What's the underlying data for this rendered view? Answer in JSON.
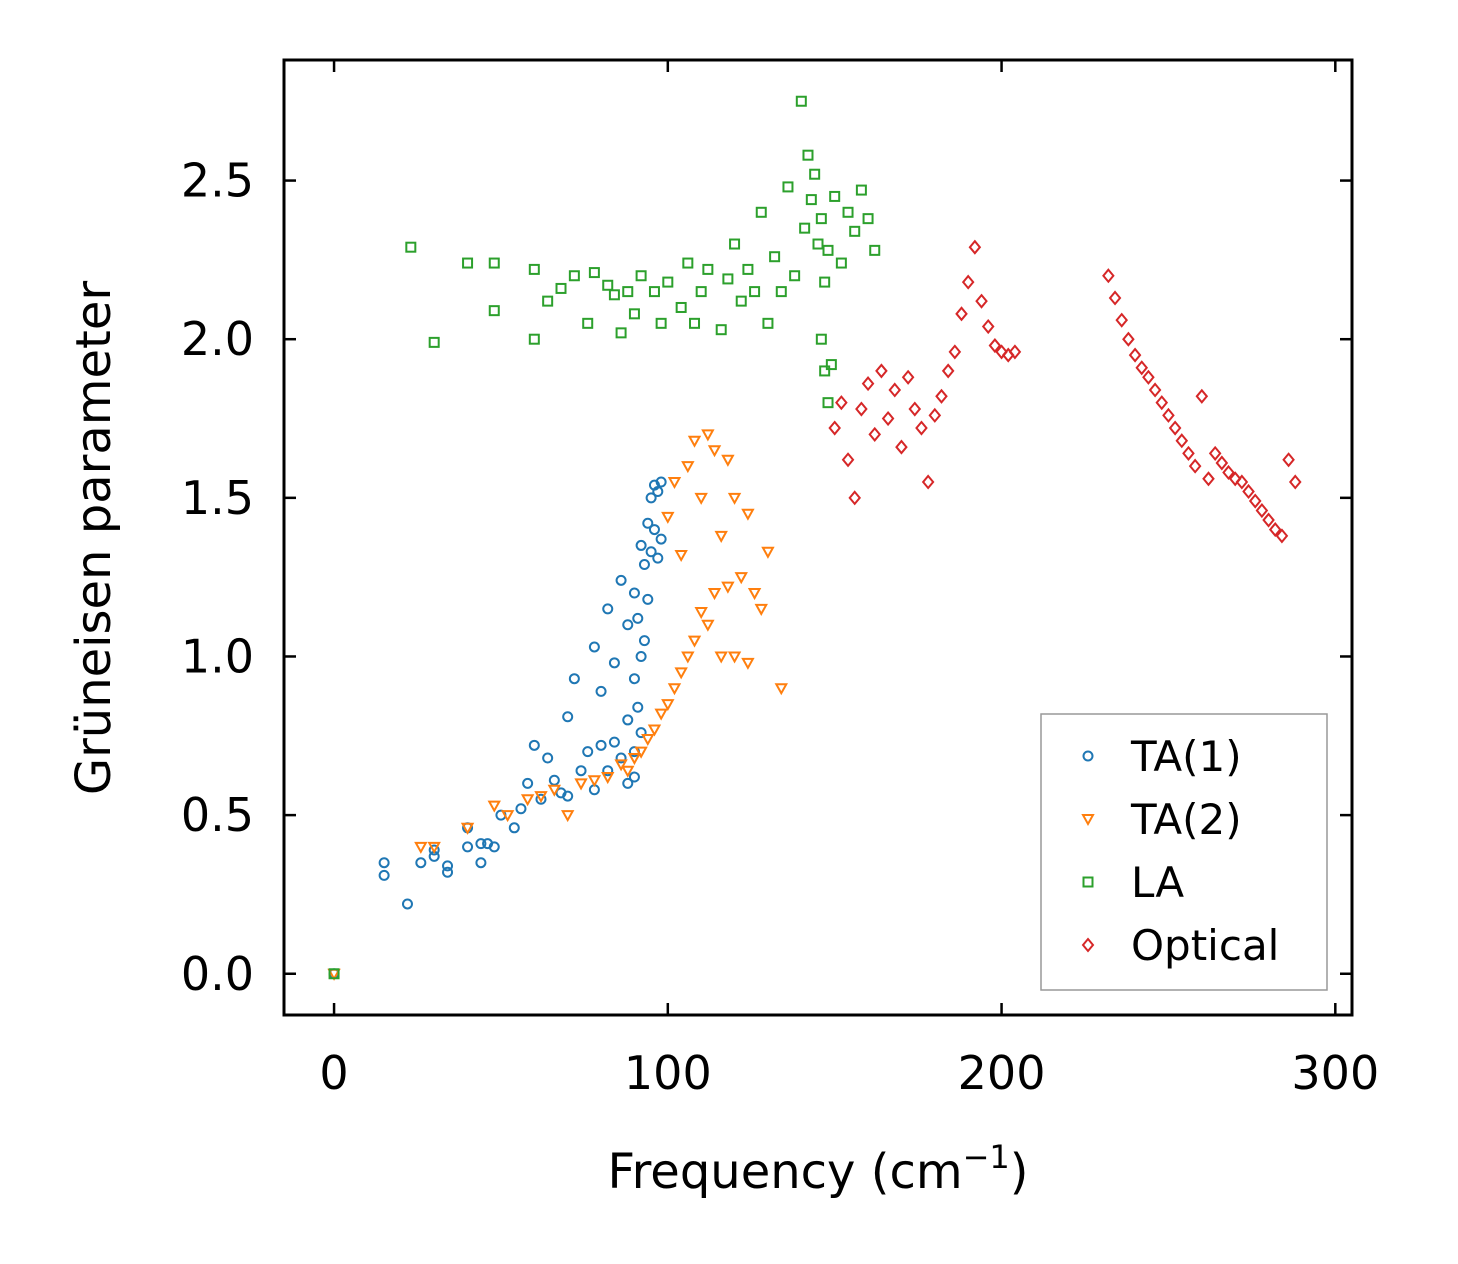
{
  "chart_data": {
    "type": "scatter",
    "title": "",
    "xlabel": "Frequency (cm",
    "xlabel_sup": "−1",
    "xlabel_close": ")",
    "ylabel": "Grüneisen parameter",
    "xlim": [
      -15,
      305
    ],
    "ylim": [
      -0.13,
      2.88
    ],
    "xticks": [
      0,
      100,
      200,
      300
    ],
    "xtick_labels": [
      "0",
      "100",
      "200",
      "300"
    ],
    "yticks": [
      0.0,
      0.5,
      1.0,
      1.5,
      2.0,
      2.5
    ],
    "ytick_labels": [
      "0.0",
      "0.5",
      "1.0",
      "1.5",
      "2.0",
      "2.5"
    ],
    "grid": false,
    "legend_position": "lower-right",
    "series": [
      {
        "name": "TA(1)",
        "marker": "circle",
        "color": "#1f77b4",
        "x": [
          0,
          15,
          15,
          22,
          26,
          30,
          30,
          34,
          34,
          40,
          40,
          44,
          44,
          46,
          48,
          50,
          54,
          56,
          58,
          60,
          62,
          64,
          66,
          68,
          70,
          70,
          72,
          74,
          76,
          78,
          78,
          80,
          80,
          82,
          82,
          84,
          84,
          86,
          86,
          88,
          88,
          88,
          90,
          90,
          90,
          90,
          91,
          91,
          92,
          92,
          92,
          93,
          93,
          94,
          94,
          95,
          95,
          96,
          96,
          97,
          97,
          98,
          98
        ],
        "y": [
          0.0,
          0.31,
          0.35,
          0.22,
          0.35,
          0.37,
          0.39,
          0.32,
          0.34,
          0.4,
          0.46,
          0.35,
          0.41,
          0.41,
          0.4,
          0.5,
          0.46,
          0.52,
          0.6,
          0.72,
          0.55,
          0.68,
          0.61,
          0.57,
          0.81,
          0.56,
          0.93,
          0.64,
          0.7,
          1.03,
          0.58,
          0.89,
          0.72,
          1.15,
          0.64,
          0.98,
          0.73,
          1.24,
          0.68,
          1.1,
          0.8,
          0.6,
          1.2,
          0.93,
          0.7,
          0.62,
          1.12,
          0.84,
          1.35,
          1.0,
          0.76,
          1.29,
          1.05,
          1.42,
          1.18,
          1.5,
          1.33,
          1.54,
          1.4,
          1.52,
          1.31,
          1.55,
          1.37
        ]
      },
      {
        "name": "TA(2)",
        "marker": "triangle-down",
        "color": "#ff7f0e",
        "x": [
          0,
          26,
          30,
          40,
          48,
          52,
          58,
          62,
          66,
          70,
          74,
          78,
          82,
          86,
          88,
          90,
          92,
          94,
          96,
          98,
          100,
          100,
          102,
          102,
          104,
          104,
          106,
          106,
          108,
          108,
          110,
          110,
          112,
          112,
          114,
          114,
          116,
          116,
          118,
          118,
          120,
          120,
          122,
          124,
          124,
          126,
          128,
          130,
          134
        ],
        "y": [
          0.0,
          0.4,
          0.4,
          0.46,
          0.53,
          0.5,
          0.55,
          0.56,
          0.58,
          0.5,
          0.6,
          0.61,
          0.62,
          0.66,
          0.64,
          0.68,
          0.7,
          0.74,
          0.77,
          0.82,
          0.85,
          1.44,
          0.9,
          1.55,
          0.95,
          1.32,
          1.0,
          1.6,
          1.05,
          1.68,
          1.14,
          1.5,
          1.1,
          1.7,
          1.2,
          1.65,
          1.0,
          1.38,
          1.22,
          1.62,
          1.0,
          1.5,
          1.25,
          0.98,
          1.45,
          1.2,
          1.15,
          1.33,
          0.9
        ]
      },
      {
        "name": "LA",
        "marker": "square",
        "color": "#2ca02c",
        "x": [
          0,
          23,
          30,
          40,
          48,
          48,
          60,
          60,
          64,
          68,
          72,
          76,
          78,
          82,
          84,
          86,
          88,
          90,
          92,
          96,
          98,
          100,
          104,
          106,
          108,
          110,
          112,
          116,
          118,
          120,
          122,
          124,
          126,
          128,
          130,
          132,
          134,
          136,
          138,
          140,
          141,
          142,
          143,
          144,
          145,
          146,
          146,
          147,
          147,
          148,
          148,
          149,
          150,
          152,
          154,
          156,
          158,
          160,
          162
        ],
        "y": [
          0.0,
          2.29,
          1.99,
          2.24,
          2.24,
          2.09,
          2.0,
          2.22,
          2.12,
          2.16,
          2.2,
          2.05,
          2.21,
          2.17,
          2.14,
          2.02,
          2.15,
          2.08,
          2.2,
          2.15,
          2.05,
          2.18,
          2.1,
          2.24,
          2.05,
          2.15,
          2.22,
          2.03,
          2.19,
          2.3,
          2.12,
          2.22,
          2.15,
          2.4,
          2.05,
          2.26,
          2.15,
          2.48,
          2.2,
          2.75,
          2.35,
          2.58,
          2.44,
          2.52,
          2.3,
          2.0,
          2.38,
          1.9,
          2.18,
          1.8,
          2.28,
          1.92,
          2.45,
          2.24,
          2.4,
          2.34,
          2.47,
          2.38,
          2.28
        ]
      },
      {
        "name": "Optical",
        "marker": "diamond",
        "color": "#d62728",
        "x": [
          150,
          152,
          154,
          156,
          158,
          160,
          162,
          164,
          166,
          168,
          170,
          172,
          174,
          176,
          178,
          180,
          182,
          184,
          186,
          188,
          190,
          192,
          194,
          196,
          198,
          200,
          202,
          204,
          232,
          234,
          236,
          238,
          240,
          242,
          244,
          246,
          248,
          250,
          252,
          254,
          256,
          258,
          260,
          262,
          264,
          266,
          268,
          270,
          272,
          274,
          276,
          278,
          280,
          282,
          284,
          286,
          288
        ],
        "y": [
          1.72,
          1.8,
          1.62,
          1.5,
          1.78,
          1.86,
          1.7,
          1.9,
          1.75,
          1.84,
          1.66,
          1.88,
          1.78,
          1.72,
          1.55,
          1.76,
          1.82,
          1.9,
          1.96,
          2.08,
          2.18,
          2.29,
          2.12,
          2.04,
          1.98,
          1.96,
          1.95,
          1.96,
          2.2,
          2.13,
          2.06,
          2.0,
          1.95,
          1.91,
          1.88,
          1.84,
          1.8,
          1.76,
          1.72,
          1.68,
          1.64,
          1.6,
          1.82,
          1.56,
          1.64,
          1.61,
          1.58,
          1.56,
          1.55,
          1.52,
          1.49,
          1.46,
          1.43,
          1.4,
          1.38,
          1.62,
          1.55
        ]
      }
    ]
  }
}
